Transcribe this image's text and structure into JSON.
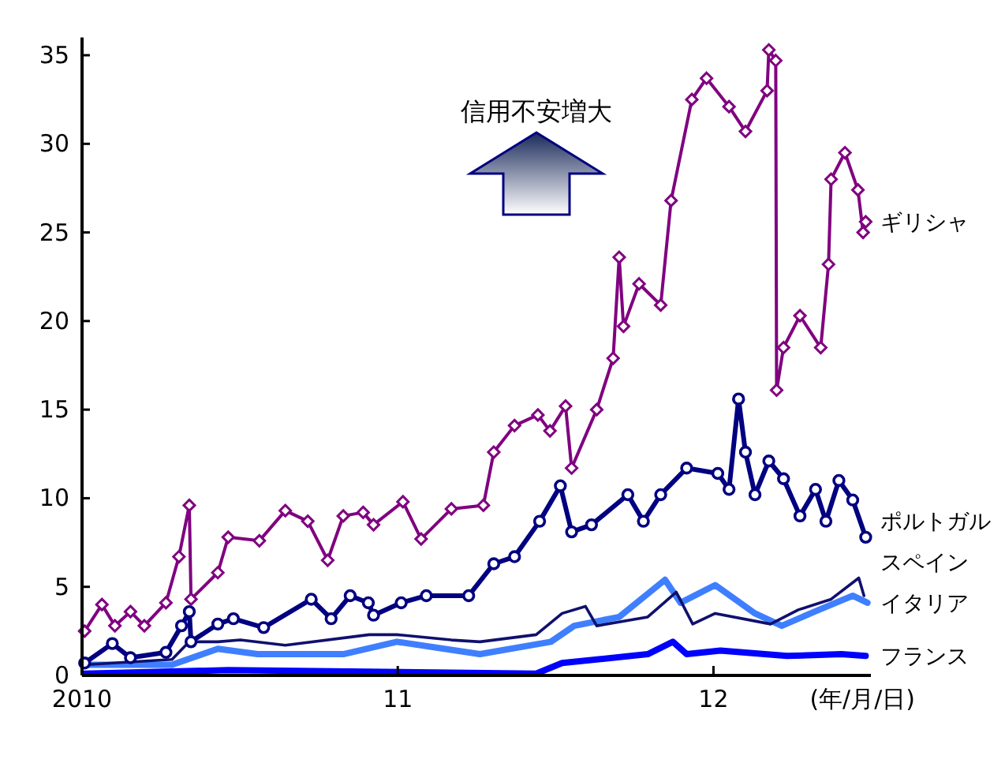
{
  "chart_data": {
    "type": "line",
    "xlabel": "(年/月/日)",
    "annotations": [
      "信用不安増大"
    ],
    "xlim": [
      "2010-01-01",
      "2012-07-01"
    ],
    "xticks": [
      {
        "value": "2010-01-01",
        "label": "2010"
      },
      {
        "value": "2011-01-01",
        "label": "11"
      },
      {
        "value": "2012-01-01",
        "label": "12"
      }
    ],
    "ylim": [
      0,
      36
    ],
    "yticks": [
      0,
      5,
      10,
      15,
      20,
      25,
      30,
      35
    ],
    "grid": false,
    "series": [
      {
        "name": "ギリシャ",
        "color": "#800080",
        "marker": "diamond",
        "x": [
          "2010-01-04",
          "2010-01-24",
          "2010-02-08",
          "2010-02-26",
          "2010-03-14",
          "2010-04-08",
          "2010-04-23",
          "2010-05-05",
          "2010-05-07",
          "2010-06-07",
          "2010-06-19",
          "2010-07-25",
          "2010-08-24",
          "2010-09-19",
          "2010-10-12",
          "2010-10-30",
          "2010-11-22",
          "2010-12-04",
          "2011-01-07",
          "2011-01-28",
          "2011-03-04",
          "2011-04-10",
          "2011-04-22",
          "2011-05-16",
          "2011-06-12",
          "2011-06-26",
          "2011-07-14",
          "2011-07-21",
          "2011-08-19",
          "2011-09-07",
          "2011-09-14",
          "2011-09-19",
          "2011-10-07",
          "2011-11-01",
          "2011-11-13",
          "2011-12-07",
          "2011-12-24",
          "2012-01-19",
          "2012-02-07",
          "2012-03-03",
          "2012-03-05",
          "2012-03-13",
          "2012-03-14",
          "2012-03-22",
          "2012-04-10",
          "2012-05-04",
          "2012-05-13",
          "2012-05-16",
          "2012-06-01",
          "2012-06-16",
          "2012-06-22",
          "2012-06-25"
        ],
        "values": [
          2.5,
          4.0,
          2.8,
          3.6,
          2.8,
          4.1,
          6.7,
          9.6,
          4.3,
          5.8,
          7.8,
          7.6,
          9.3,
          8.7,
          6.5,
          9.0,
          9.2,
          8.5,
          9.8,
          7.7,
          9.4,
          9.6,
          12.6,
          14.1,
          14.7,
          13.8,
          15.2,
          11.7,
          15.0,
          17.9,
          23.6,
          19.7,
          22.1,
          20.9,
          26.8,
          32.5,
          33.7,
          32.1,
          30.7,
          33.0,
          35.3,
          34.7,
          16.1,
          18.5,
          20.3,
          18.5,
          23.2,
          28.0,
          29.5,
          27.4,
          25.0,
          25.6
        ]
      },
      {
        "name": "ポルトガル",
        "color": "#000080",
        "marker": "circle",
        "x": [
          "2010-01-04",
          "2010-02-05",
          "2010-02-26",
          "2010-04-08",
          "2010-04-26",
          "2010-05-05",
          "2010-05-07",
          "2010-06-07",
          "2010-06-25",
          "2010-07-30",
          "2010-09-23",
          "2010-10-16",
          "2010-11-07",
          "2010-11-28",
          "2010-12-04",
          "2011-01-05",
          "2011-02-03",
          "2011-03-24",
          "2011-04-22",
          "2011-05-16",
          "2011-06-14",
          "2011-07-08",
          "2011-07-21",
          "2011-08-13",
          "2011-09-24",
          "2011-10-12",
          "2011-11-01",
          "2011-12-01",
          "2012-01-06",
          "2012-01-19",
          "2012-01-30",
          "2012-02-07",
          "2012-02-18",
          "2012-03-05",
          "2012-03-22",
          "2012-04-10",
          "2012-04-28",
          "2012-05-10",
          "2012-05-25",
          "2012-06-10",
          "2012-06-25"
        ],
        "values": [
          0.7,
          1.8,
          1.0,
          1.3,
          2.8,
          3.6,
          1.9,
          2.9,
          3.2,
          2.7,
          4.3,
          3.2,
          4.5,
          4.1,
          3.4,
          4.1,
          4.5,
          4.5,
          6.3,
          6.7,
          8.7,
          10.7,
          8.1,
          8.5,
          10.2,
          8.7,
          10.2,
          11.7,
          11.4,
          10.5,
          15.6,
          12.6,
          10.2,
          12.1,
          11.1,
          9.0,
          10.5,
          8.7,
          11.0,
          9.9,
          7.8
        ]
      },
      {
        "name": "スペイン",
        "color": "#10106e",
        "marker": "none",
        "x": [
          "2010-01-04",
          "2010-04-15",
          "2010-05-05",
          "2010-06-07",
          "2010-07-03",
          "2010-08-24",
          "2010-11-29",
          "2010-12-31",
          "2011-03-04",
          "2011-04-06",
          "2011-06-10",
          "2011-07-10",
          "2011-08-06",
          "2011-08-19",
          "2011-10-17",
          "2011-11-19",
          "2011-12-08",
          "2012-01-03",
          "2012-03-07",
          "2012-04-08",
          "2012-05-16",
          "2012-06-17",
          "2012-06-23"
        ],
        "values": [
          0.6,
          0.9,
          1.9,
          1.9,
          2.0,
          1.7,
          2.3,
          2.3,
          2.0,
          1.9,
          2.3,
          3.5,
          3.9,
          2.8,
          3.3,
          4.7,
          2.9,
          3.5,
          2.9,
          3.7,
          4.3,
          5.5,
          4.5
        ]
      },
      {
        "name": "イタリア",
        "color": "#3f7fff",
        "marker": "none",
        "x": [
          "2010-01-04",
          "2010-04-15",
          "2010-06-07",
          "2010-07-23",
          "2010-10-30",
          "2010-12-31",
          "2011-04-06",
          "2011-06-27",
          "2011-07-24",
          "2011-09-14",
          "2011-11-06",
          "2011-11-24",
          "2012-01-03",
          "2012-02-18",
          "2012-03-20",
          "2012-04-27",
          "2012-06-10",
          "2012-06-27"
        ],
        "values": [
          0.6,
          0.6,
          1.5,
          1.2,
          1.2,
          1.9,
          1.2,
          1.9,
          2.8,
          3.3,
          5.4,
          4.1,
          5.1,
          3.5,
          2.8,
          3.6,
          4.5,
          4.1
        ]
      },
      {
        "name": "フランス",
        "color": "#0000ff",
        "marker": "none",
        "x": [
          "2010-01-04",
          "2010-06-19",
          "2011-06-10",
          "2011-07-10",
          "2011-10-17",
          "2011-11-15",
          "2011-12-01",
          "2012-01-09",
          "2012-03-26",
          "2012-05-28",
          "2012-06-25"
        ],
        "values": [
          0.1,
          0.3,
          0.1,
          0.7,
          1.2,
          1.9,
          1.2,
          1.4,
          1.1,
          1.2,
          1.1
        ]
      }
    ]
  }
}
